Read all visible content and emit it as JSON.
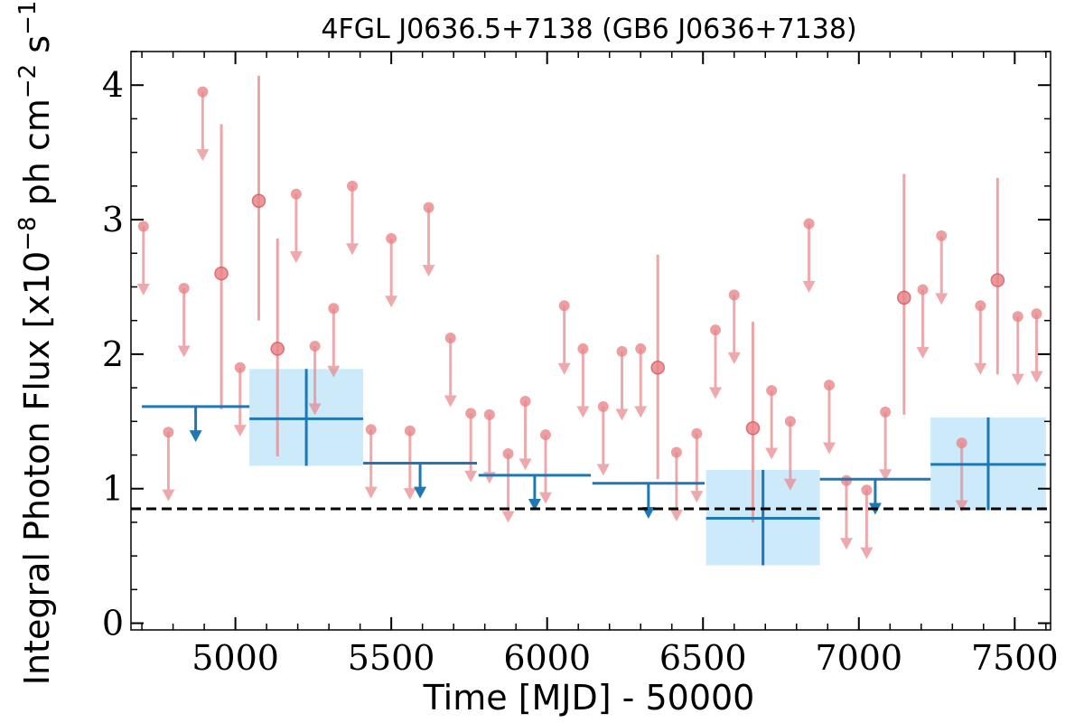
{
  "chart_data": {
    "type": "scatter",
    "title": "4FGL J0636.5+7138 (GB6 J0636+7138)",
    "xlabel": "Time [MJD] - 50000",
    "ylabel": "Integral Photon Flux [x10^-8 ph cm^-2 s^-1]",
    "ylabel_parts": {
      "a": "Integral Photon Flux [x10",
      "e1": "−8",
      "b": " ph cm",
      "e2": "−2",
      "c": " s",
      "e3": "−1",
      "d": "]"
    },
    "xlim": [
      4665,
      7615
    ],
    "ylim": [
      -0.05,
      4.25
    ],
    "x_ticks": [
      5000,
      5500,
      6000,
      6500,
      7000,
      7500
    ],
    "x_tick_labels": [
      "5000",
      "5500",
      "6000",
      "6500",
      "7000",
      "7500"
    ],
    "y_ticks": [
      0,
      1,
      2,
      3,
      4
    ],
    "y_tick_labels": [
      "0",
      "1",
      "2",
      "3",
      "4"
    ],
    "mean_flux": 0.85,
    "colors": {
      "short_bins": "#e8868a",
      "long_bins": "#1f77b4",
      "long_bin_band": "#cdeafa",
      "mean_line": "#000000"
    },
    "series": [
      {
        "kind": "short_bins_upper_limits",
        "points": [
          {
            "x": 4705,
            "y": 2.95
          },
          {
            "x": 4785,
            "y": 1.42
          },
          {
            "x": 4835,
            "y": 2.49
          },
          {
            "x": 4895,
            "y": 3.95
          },
          {
            "x": 5015,
            "y": 1.9
          },
          {
            "x": 5195,
            "y": 3.19
          },
          {
            "x": 5255,
            "y": 2.06
          },
          {
            "x": 5315,
            "y": 2.34
          },
          {
            "x": 5375,
            "y": 3.25
          },
          {
            "x": 5435,
            "y": 1.44
          },
          {
            "x": 5500,
            "y": 2.86
          },
          {
            "x": 5560,
            "y": 1.43
          },
          {
            "x": 5620,
            "y": 3.09
          },
          {
            "x": 5690,
            "y": 2.12
          },
          {
            "x": 5755,
            "y": 1.56
          },
          {
            "x": 5815,
            "y": 1.55
          },
          {
            "x": 5875,
            "y": 1.26
          },
          {
            "x": 5930,
            "y": 1.65
          },
          {
            "x": 5995,
            "y": 1.4
          },
          {
            "x": 6055,
            "y": 2.36
          },
          {
            "x": 6115,
            "y": 2.04
          },
          {
            "x": 6180,
            "y": 1.61
          },
          {
            "x": 6240,
            "y": 2.02
          },
          {
            "x": 6300,
            "y": 2.04
          },
          {
            "x": 6415,
            "y": 1.27
          },
          {
            "x": 6480,
            "y": 1.41
          },
          {
            "x": 6540,
            "y": 2.18
          },
          {
            "x": 6600,
            "y": 2.44
          },
          {
            "x": 6720,
            "y": 1.73
          },
          {
            "x": 6780,
            "y": 1.5
          },
          {
            "x": 6840,
            "y": 2.97
          },
          {
            "x": 6905,
            "y": 1.77
          },
          {
            "x": 6960,
            "y": 1.06
          },
          {
            "x": 7025,
            "y": 0.99
          },
          {
            "x": 7085,
            "y": 1.57
          },
          {
            "x": 7205,
            "y": 2.48
          },
          {
            "x": 7265,
            "y": 2.88
          },
          {
            "x": 7330,
            "y": 1.34
          },
          {
            "x": 7390,
            "y": 2.36
          },
          {
            "x": 7510,
            "y": 2.28
          },
          {
            "x": 7570,
            "y": 2.3
          }
        ]
      },
      {
        "kind": "short_bins_detections",
        "points": [
          {
            "x": 4955,
            "y": 2.6,
            "ylo": 1.59,
            "yhi": 3.71
          },
          {
            "x": 5075,
            "y": 3.14,
            "ylo": 2.25,
            "yhi": 4.07
          },
          {
            "x": 5135,
            "y": 2.04,
            "ylo": 1.24,
            "yhi": 2.86
          },
          {
            "x": 6355,
            "y": 1.9,
            "ylo": 1.07,
            "yhi": 2.74
          },
          {
            "x": 6660,
            "y": 1.45,
            "ylo": 0.75,
            "yhi": 2.24
          },
          {
            "x": 7145,
            "y": 2.42,
            "ylo": 1.55,
            "yhi": 3.34
          },
          {
            "x": 7445,
            "y": 2.55,
            "ylo": 1.85,
            "yhi": 3.31
          }
        ]
      },
      {
        "kind": "long_bins_upper_limits",
        "points": [
          {
            "x0": 4700,
            "x1": 5045,
            "y": 1.61
          },
          {
            "x0": 5410,
            "x1": 5775,
            "y": 1.19
          },
          {
            "x0": 5780,
            "x1": 6140,
            "y": 1.1
          },
          {
            "x0": 6145,
            "x1": 6505,
            "y": 1.04
          },
          {
            "x0": 6875,
            "x1": 7230,
            "y": 1.07
          }
        ]
      },
      {
        "kind": "long_bins_detections",
        "points": [
          {
            "x0": 5045,
            "x1": 5410,
            "y": 1.52,
            "ylo": 1.17,
            "yhi": 1.89
          },
          {
            "x0": 6510,
            "x1": 6875,
            "y": 0.78,
            "ylo": 0.43,
            "yhi": 1.14
          },
          {
            "x0": 7230,
            "x1": 7600,
            "y": 1.18,
            "ylo": 0.84,
            "yhi": 1.53
          }
        ]
      }
    ]
  }
}
